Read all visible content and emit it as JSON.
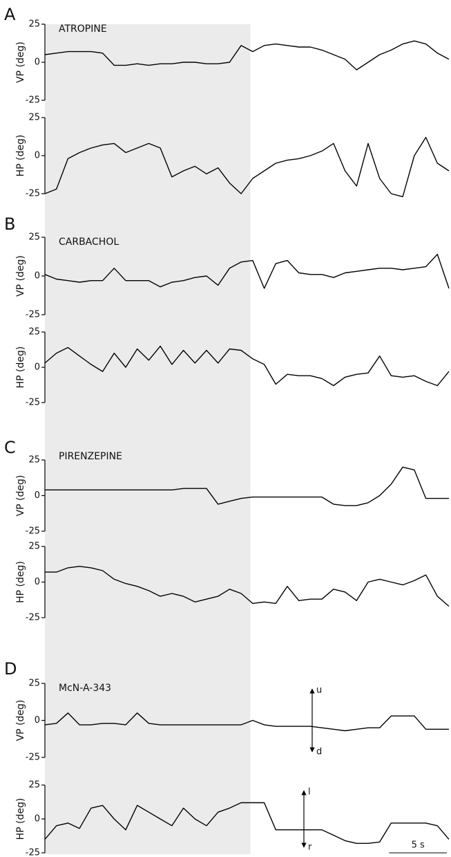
{
  "figure": {
    "scale_bar": {
      "label": "5 s",
      "value": 5
    },
    "highlight": [
      0,
      17.8
    ]
  },
  "chart_data": [
    {
      "type": "line",
      "panel": "A",
      "title": "ATROPINE",
      "ylabel": "VP (deg)",
      "color": "#000000",
      "xlim": [
        0,
        35
      ],
      "ylim": [
        -25,
        25
      ],
      "yticks": [
        -25,
        0,
        25
      ],
      "x": [
        0,
        1,
        2,
        3,
        4,
        5,
        6,
        7,
        8,
        9,
        10,
        11,
        12,
        13,
        14,
        15,
        16,
        17,
        18,
        19,
        20,
        21,
        22,
        23,
        24,
        25,
        26,
        27,
        28,
        29,
        30,
        31,
        32,
        33,
        34,
        35
      ],
      "values": [
        5,
        6,
        7,
        7,
        7,
        6,
        -2,
        -2,
        -1,
        -2,
        -1,
        -1,
        0,
        0,
        -1,
        -1,
        0,
        11,
        7,
        11,
        12,
        11,
        10,
        10,
        8,
        5,
        2,
        -5,
        0,
        5,
        8,
        12,
        14,
        12,
        6,
        2
      ]
    },
    {
      "type": "line",
      "ylabel": "HP (deg)",
      "color": "#000000",
      "xlim": [
        0,
        35
      ],
      "ylim": [
        -25,
        25
      ],
      "yticks": [
        -25,
        0,
        25
      ],
      "x": [
        0,
        1,
        2,
        3,
        4,
        5,
        6,
        7,
        8,
        9,
        10,
        11,
        12,
        13,
        14,
        15,
        16,
        17,
        18,
        19,
        20,
        21,
        22,
        23,
        24,
        25,
        26,
        27,
        28,
        29,
        30,
        31,
        32,
        33,
        34,
        35
      ],
      "values": [
        -25,
        -22,
        -2,
        2,
        5,
        7,
        8,
        2,
        5,
        8,
        5,
        -14,
        -10,
        -7,
        -12,
        -8,
        -18,
        -25,
        -15,
        -10,
        -5,
        -3,
        -2,
        0,
        3,
        8,
        -10,
        -20,
        8,
        -15,
        -25,
        -27,
        0,
        12,
        -5,
        -10
      ]
    },
    {
      "type": "line",
      "panel": "B",
      "title": "CARBACHOL",
      "ylabel": "VP (deg)",
      "color": "#000000",
      "xlim": [
        0,
        35
      ],
      "ylim": [
        -25,
        25
      ],
      "yticks": [
        -25,
        0,
        25
      ],
      "x": [
        0,
        1,
        2,
        3,
        4,
        5,
        6,
        7,
        8,
        9,
        10,
        11,
        12,
        13,
        14,
        15,
        16,
        17,
        18,
        19,
        20,
        21,
        22,
        23,
        24,
        25,
        26,
        27,
        28,
        29,
        30,
        31,
        32,
        33,
        34,
        35
      ],
      "values": [
        1,
        -2,
        -3,
        -4,
        -3,
        -3,
        5,
        -3,
        -3,
        -3,
        -7,
        -4,
        -3,
        -1,
        0,
        -6,
        5,
        9,
        10,
        -8,
        8,
        10,
        2,
        1,
        1,
        -1,
        2,
        3,
        4,
        5,
        5,
        4,
        5,
        6,
        14,
        -8
      ]
    },
    {
      "type": "line",
      "ylabel": "HP (deg)",
      "color": "#000000",
      "xlim": [
        0,
        35
      ],
      "ylim": [
        -25,
        25
      ],
      "yticks": [
        -25,
        0,
        25
      ],
      "x": [
        0,
        1,
        2,
        3,
        4,
        5,
        6,
        7,
        8,
        9,
        10,
        11,
        12,
        13,
        14,
        15,
        16,
        17,
        18,
        19,
        20,
        21,
        22,
        23,
        24,
        25,
        26,
        27,
        28,
        29,
        30,
        31,
        32,
        33,
        34,
        35
      ],
      "values": [
        3,
        10,
        14,
        8,
        2,
        -3,
        10,
        0,
        13,
        5,
        15,
        2,
        12,
        3,
        12,
        3,
        13,
        12,
        6,
        2,
        -12,
        -5,
        -6,
        -6,
        -8,
        -13,
        -7,
        -5,
        -4,
        8,
        -6,
        -7,
        -6,
        -10,
        -13,
        -3
      ]
    },
    {
      "type": "line",
      "panel": "C",
      "title": "PIRENZEPINE",
      "ylabel": "VP (deg)",
      "color": "#000000",
      "xlim": [
        0,
        35
      ],
      "ylim": [
        -25,
        25
      ],
      "yticks": [
        -25,
        0,
        25
      ],
      "x": [
        0,
        1,
        2,
        3,
        4,
        5,
        6,
        7,
        8,
        9,
        10,
        11,
        12,
        13,
        14,
        15,
        16,
        17,
        18,
        19,
        20,
        21,
        22,
        23,
        24,
        25,
        26,
        27,
        28,
        29,
        30,
        31,
        32,
        33,
        34,
        35
      ],
      "values": [
        4,
        4,
        4,
        4,
        4,
        4,
        4,
        4,
        4,
        4,
        4,
        4,
        5,
        5,
        5,
        -6,
        -4,
        -2,
        -1,
        -1,
        -1,
        -1,
        -1,
        -1,
        -1,
        -6,
        -7,
        -7,
        -5,
        0,
        8,
        20,
        18,
        -2,
        -2,
        -2
      ]
    },
    {
      "type": "line",
      "ylabel": "HP (deg)",
      "color": "#000000",
      "xlim": [
        0,
        35
      ],
      "ylim": [
        -25,
        25
      ],
      "yticks": [
        -25,
        0,
        25
      ],
      "x": [
        0,
        1,
        2,
        3,
        4,
        5,
        6,
        7,
        8,
        9,
        10,
        11,
        12,
        13,
        14,
        15,
        16,
        17,
        18,
        19,
        20,
        21,
        22,
        23,
        24,
        25,
        26,
        27,
        28,
        29,
        30,
        31,
        32,
        33,
        34,
        35
      ],
      "values": [
        7,
        7,
        10,
        11,
        10,
        8,
        2,
        -1,
        -3,
        -6,
        -10,
        -8,
        -10,
        -14,
        -12,
        -10,
        -5,
        -8,
        -15,
        -14,
        -15,
        -3,
        -13,
        -12,
        -12,
        -5,
        -7,
        -13,
        0,
        2,
        0,
        -2,
        1,
        5,
        -10,
        -17
      ]
    },
    {
      "type": "line",
      "panel": "D",
      "title": "McN-A-343",
      "ylabel": "VP (deg)",
      "color": "#000000",
      "xlim": [
        0,
        35
      ],
      "ylim": [
        -25,
        25
      ],
      "yticks": [
        -25,
        0,
        25
      ],
      "annotations": [
        "u",
        "d"
      ],
      "x": [
        0,
        1,
        2,
        3,
        4,
        5,
        6,
        7,
        8,
        9,
        10,
        11,
        12,
        13,
        14,
        15,
        16,
        17,
        18,
        19,
        20,
        21,
        22,
        23,
        24,
        25,
        26,
        27,
        28,
        29,
        30,
        31,
        32,
        33,
        34,
        35
      ],
      "values": [
        -3,
        -2,
        5,
        -3,
        -3,
        -2,
        -2,
        -3,
        5,
        -2,
        -3,
        -3,
        -3,
        -3,
        -3,
        -3,
        -3,
        -3,
        0,
        -3,
        -4,
        -4,
        -4,
        -4,
        -5,
        -6,
        -7,
        -6,
        -5,
        -5,
        3,
        3,
        3,
        -6,
        -6,
        -6
      ]
    },
    {
      "type": "line",
      "ylabel": "HP (deg)",
      "color": "#000000",
      "xlim": [
        0,
        35
      ],
      "ylim": [
        -25,
        25
      ],
      "yticks": [
        -25,
        0,
        25
      ],
      "annotations": [
        "l",
        "r"
      ],
      "x": [
        0,
        1,
        2,
        3,
        4,
        5,
        6,
        7,
        8,
        9,
        10,
        11,
        12,
        13,
        14,
        15,
        16,
        17,
        18,
        19,
        20,
        21,
        22,
        23,
        24,
        25,
        26,
        27,
        28,
        29,
        30,
        31,
        32,
        33,
        34,
        35
      ],
      "values": [
        -15,
        -5,
        -3,
        -7,
        8,
        10,
        0,
        -8,
        10,
        5,
        0,
        -5,
        8,
        0,
        -5,
        5,
        8,
        12,
        12,
        12,
        -8,
        -8,
        -8,
        -8,
        -8,
        -12,
        -16,
        -18,
        -18,
        -17,
        -3,
        -3,
        -3,
        -3,
        -5,
        -15
      ]
    }
  ]
}
